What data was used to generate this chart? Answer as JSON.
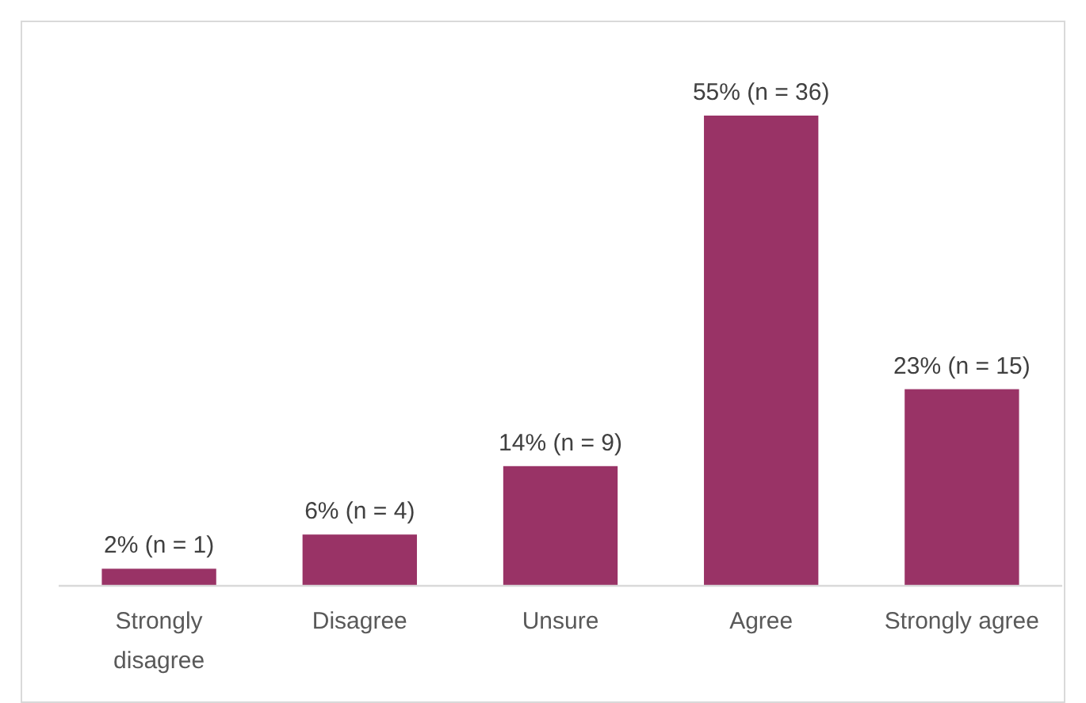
{
  "chart_data": {
    "type": "bar",
    "categories": [
      "Strongly disagree",
      "Disagree",
      "Unsure",
      "Agree",
      "Strongly agree"
    ],
    "values": [
      2,
      6,
      14,
      55,
      23
    ],
    "color": "#993366",
    "value_labels": [
      "2% (n = 1)",
      "6% (n = 4)",
      "14% (n = 9)",
      "55% (n = 36)",
      "23% (n = 15)"
    ]
  }
}
